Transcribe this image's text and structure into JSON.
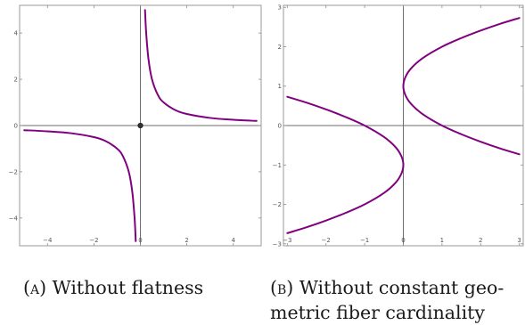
{
  "chart_data": [
    {
      "type": "line",
      "panel": "a",
      "caption_tag": "(a)",
      "caption_text": "Without flatness",
      "xlim": [
        -5.2,
        5.2
      ],
      "ylim": [
        -5.2,
        5.2
      ],
      "x_ticks": [
        -4,
        -2,
        0,
        2,
        4
      ],
      "y_ticks": [
        -4,
        -2,
        0,
        2,
        4
      ],
      "x_tick_labels": [
        "−4",
        "−2",
        "0",
        "2",
        "4"
      ],
      "y_tick_labels": [
        "−4",
        "−2",
        "0",
        "2",
        "4"
      ],
      "grid": false,
      "series": [
        {
          "color": "#800080",
          "points": [
            [
              0.2,
              5.0
            ],
            [
              0.25,
              4.0
            ],
            [
              0.35,
              2.86
            ],
            [
              0.5,
              2.0
            ],
            [
              0.75,
              1.33
            ],
            [
              1.0,
              1.0
            ],
            [
              1.5,
              0.67
            ],
            [
              2.0,
              0.5
            ],
            [
              3.0,
              0.33
            ],
            [
              4.0,
              0.25
            ],
            [
              5.0,
              0.2
            ]
          ]
        },
        {
          "color": "#800080",
          "points": [
            [
              -5.0,
              -0.2
            ],
            [
              -4.0,
              -0.25
            ],
            [
              -3.0,
              -0.33
            ],
            [
              -2.0,
              -0.5
            ],
            [
              -1.5,
              -0.67
            ],
            [
              -1.0,
              -1.0
            ],
            [
              -0.75,
              -1.33
            ],
            [
              -0.5,
              -2.0
            ],
            [
              -0.35,
              -2.86
            ],
            [
              -0.25,
              -4.0
            ],
            [
              -0.2,
              -5.0
            ]
          ]
        }
      ],
      "points": [
        {
          "x": 0,
          "y": 0,
          "color": "#333333"
        }
      ]
    },
    {
      "type": "line",
      "panel": "b",
      "caption_tag": "(b)",
      "caption_lines": [
        "Without constant geo-",
        "metric fiber cardinality"
      ],
      "xlim": [
        -3.1,
        3.1
      ],
      "ylim": [
        -3.05,
        3.05
      ],
      "x_ticks": [
        -3,
        -2,
        -1,
        0,
        1,
        2,
        3
      ],
      "y_ticks": [
        -3,
        -2,
        -1,
        0,
        1,
        2,
        3
      ],
      "x_tick_labels": [
        "−3",
        "−2",
        "−1",
        "0",
        "1",
        "2",
        "3"
      ],
      "y_tick_labels": [
        "−3",
        "−2",
        "−1",
        "0",
        "1",
        "2",
        "3"
      ],
      "grid": false,
      "series": [
        {
          "color": "#800080",
          "points": [
            [
              3.0,
              2.73
            ],
            [
              2.5,
              2.58
            ],
            [
              2.0,
              2.41
            ],
            [
              1.5,
              2.22
            ],
            [
              1.0,
              2.0
            ],
            [
              0.5,
              1.71
            ],
            [
              0.2,
              1.45
            ],
            [
              0.05,
              1.22
            ],
            [
              0.0,
              1.0
            ],
            [
              0.05,
              0.78
            ],
            [
              0.2,
              0.55
            ],
            [
              0.5,
              0.29
            ],
            [
              1.0,
              0.0
            ],
            [
              1.5,
              -0.22
            ],
            [
              2.0,
              -0.41
            ],
            [
              2.5,
              -0.58
            ],
            [
              3.0,
              -0.73
            ]
          ]
        },
        {
          "color": "#800080",
          "points": [
            [
              -3.0,
              0.73
            ],
            [
              -2.5,
              0.58
            ],
            [
              -2.0,
              0.41
            ],
            [
              -1.5,
              0.22
            ],
            [
              -1.0,
              0.0
            ],
            [
              -0.5,
              -0.29
            ],
            [
              -0.2,
              -0.55
            ],
            [
              -0.05,
              -0.78
            ],
            [
              0.0,
              -1.0
            ],
            [
              -0.05,
              -1.22
            ],
            [
              -0.2,
              -1.45
            ],
            [
              -0.5,
              -1.71
            ],
            [
              -1.0,
              -2.0
            ],
            [
              -1.5,
              -2.22
            ],
            [
              -2.0,
              -2.41
            ],
            [
              -2.5,
              -2.58
            ],
            [
              -3.0,
              -2.73
            ]
          ]
        }
      ]
    }
  ]
}
